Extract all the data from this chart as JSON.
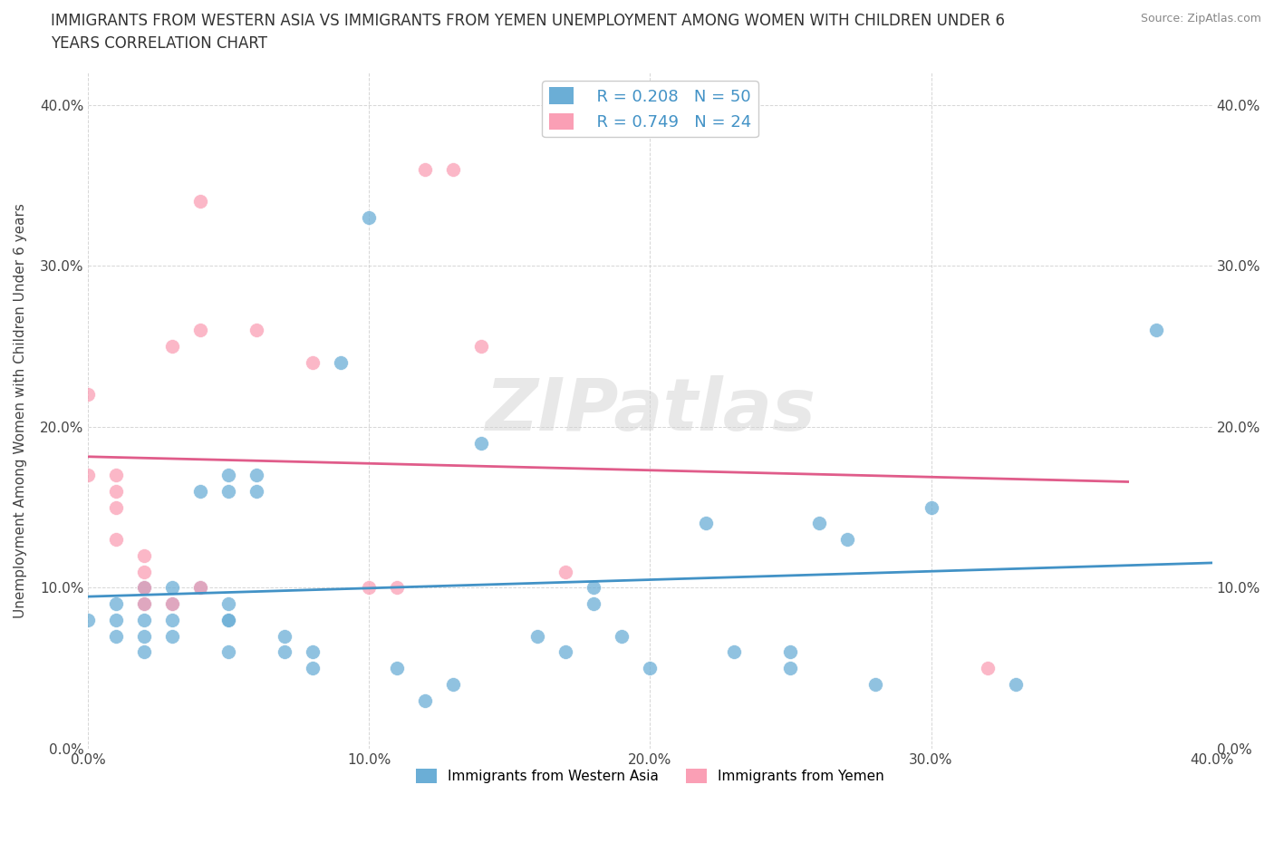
{
  "title_line1": "IMMIGRANTS FROM WESTERN ASIA VS IMMIGRANTS FROM YEMEN UNEMPLOYMENT AMONG WOMEN WITH CHILDREN UNDER 6",
  "title_line2": "YEARS CORRELATION CHART",
  "source": "Source: ZipAtlas.com",
  "ylabel": "Unemployment Among Women with Children Under 6 years",
  "xlim": [
    0.0,
    0.4
  ],
  "ylim": [
    0.0,
    0.42
  ],
  "yticks": [
    0.0,
    0.1,
    0.2,
    0.3,
    0.4
  ],
  "xticks": [
    0.0,
    0.1,
    0.2,
    0.3,
    0.4
  ],
  "watermark": "ZIPatlas",
  "legend_r1": "R = 0.208",
  "legend_n1": "N = 50",
  "legend_r2": "R = 0.749",
  "legend_n2": "N = 24",
  "color_western": "#6baed6",
  "color_yemen": "#fa9fb5",
  "color_western_line": "#4292c6",
  "color_yemen_line": "#e05c8a",
  "color_text_blue": "#4292c6",
  "western_asia_x": [
    0.0,
    0.01,
    0.01,
    0.01,
    0.02,
    0.02,
    0.02,
    0.02,
    0.02,
    0.02,
    0.03,
    0.03,
    0.03,
    0.03,
    0.04,
    0.04,
    0.05,
    0.05,
    0.05,
    0.05,
    0.05,
    0.05,
    0.06,
    0.06,
    0.07,
    0.07,
    0.08,
    0.08,
    0.09,
    0.1,
    0.11,
    0.12,
    0.13,
    0.14,
    0.16,
    0.17,
    0.18,
    0.18,
    0.19,
    0.2,
    0.22,
    0.23,
    0.25,
    0.25,
    0.26,
    0.27,
    0.28,
    0.3,
    0.33,
    0.38
  ],
  "western_asia_y": [
    0.08,
    0.07,
    0.08,
    0.09,
    0.07,
    0.08,
    0.09,
    0.1,
    0.1,
    0.06,
    0.08,
    0.09,
    0.1,
    0.07,
    0.1,
    0.16,
    0.08,
    0.09,
    0.16,
    0.17,
    0.08,
    0.06,
    0.16,
    0.17,
    0.06,
    0.07,
    0.05,
    0.06,
    0.24,
    0.33,
    0.05,
    0.03,
    0.04,
    0.19,
    0.07,
    0.06,
    0.09,
    0.1,
    0.07,
    0.05,
    0.14,
    0.06,
    0.05,
    0.06,
    0.14,
    0.13,
    0.04,
    0.15,
    0.04,
    0.26
  ],
  "yemen_x": [
    0.0,
    0.0,
    0.01,
    0.01,
    0.01,
    0.01,
    0.02,
    0.02,
    0.02,
    0.02,
    0.03,
    0.03,
    0.04,
    0.04,
    0.04,
    0.06,
    0.08,
    0.1,
    0.11,
    0.12,
    0.13,
    0.14,
    0.17,
    0.32
  ],
  "yemen_y": [
    0.17,
    0.22,
    0.13,
    0.15,
    0.16,
    0.17,
    0.09,
    0.1,
    0.11,
    0.12,
    0.09,
    0.25,
    0.1,
    0.26,
    0.34,
    0.26,
    0.24,
    0.1,
    0.1,
    0.36,
    0.36,
    0.25,
    0.11,
    0.05
  ]
}
